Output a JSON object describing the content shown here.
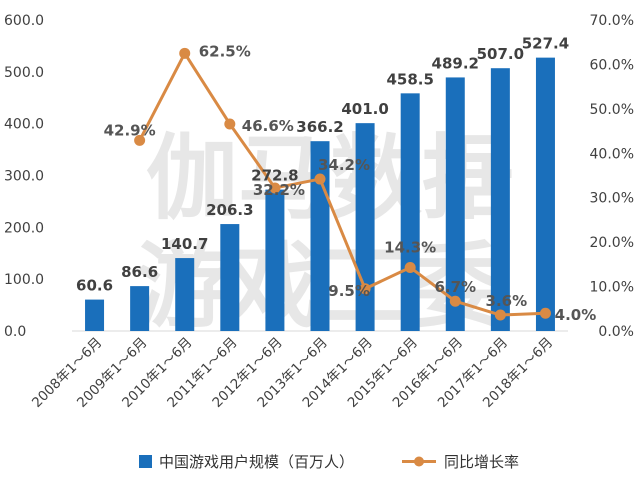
{
  "watermark": {
    "line1": "伽马数据",
    "line2": "游戏工委"
  },
  "chart_data": {
    "type": "bar+line",
    "categories": [
      "2008年1～6月",
      "2009年1～6月",
      "2010年1～6月",
      "2011年1～6月",
      "2012年1～6月",
      "2013年1～6月",
      "2014年1～6月",
      "2015年1～6月",
      "2016年1～6月",
      "2017年1～6月",
      "2018年1～6月"
    ],
    "series": [
      {
        "name": "中国游戏用户规模（百万人）",
        "type": "bar",
        "axis": "left",
        "color": "#1a6fbb",
        "values": [
          60.6,
          86.6,
          140.7,
          206.3,
          272.8,
          366.2,
          401.0,
          458.5,
          489.2,
          507.0,
          527.4
        ],
        "labels": [
          "60.6",
          "86.6",
          "140.7",
          "206.3",
          "272.8",
          "366.2",
          "401.0",
          "458.5",
          "489.2",
          "507.0",
          "527.4"
        ]
      },
      {
        "name": "同比增长率",
        "type": "line",
        "axis": "right",
        "color": "#d98a44",
        "values": [
          null,
          42.9,
          62.5,
          46.6,
          32.2,
          34.2,
          9.5,
          14.3,
          6.7,
          3.6,
          4.0
        ],
        "labels": [
          "",
          "42.9%",
          "62.5%",
          "46.6%",
          "32.2%",
          "34.2%",
          "9.5%",
          "14.3%",
          "6.7%",
          "3.6%",
          "4.0%"
        ]
      }
    ],
    "y_left": {
      "min": 0,
      "max": 600,
      "ticks": [
        0,
        100,
        200,
        300,
        400,
        500,
        600
      ],
      "tick_labels": [
        "0.0",
        "100.0",
        "200.0",
        "300.0",
        "400.0",
        "500.0",
        "600.0"
      ]
    },
    "y_right": {
      "min": 0,
      "max": 70,
      "ticks": [
        0,
        10,
        20,
        30,
        40,
        50,
        60,
        70
      ],
      "tick_labels": [
        "0.0%",
        "10.0%",
        "20.0%",
        "30.0%",
        "40.0%",
        "50.0%",
        "60.0%",
        "70.0%"
      ]
    },
    "grid": false,
    "legend_position": "bottom"
  }
}
